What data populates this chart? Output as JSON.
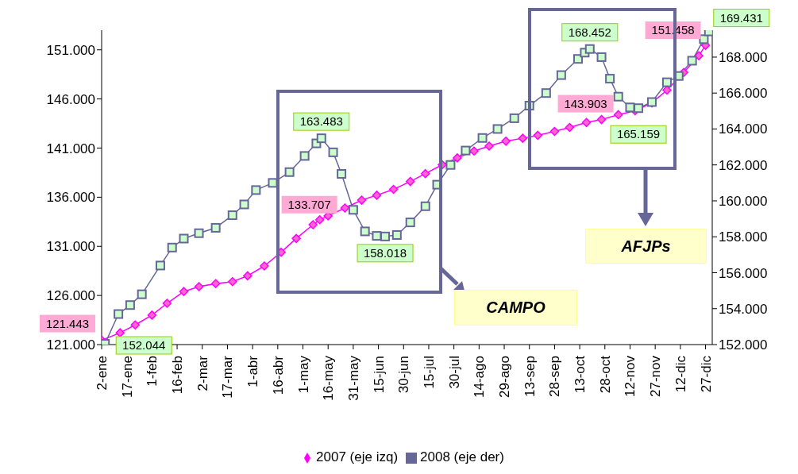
{
  "chart_data": {
    "type": "line",
    "xlim": [
      "--01-02",
      "--12-31"
    ],
    "xticks": [
      {
        "value": "--01-02",
        "label": "2-ene"
      },
      {
        "value": "--01-17",
        "label": "17-ene"
      },
      {
        "value": "--02-01",
        "label": "1-feb"
      },
      {
        "value": "--02-16",
        "label": "16-feb"
      },
      {
        "value": "--03-02",
        "label": "2-mar"
      },
      {
        "value": "--03-17",
        "label": "17-mar"
      },
      {
        "value": "--04-01",
        "label": "1-abr"
      },
      {
        "value": "--04-16",
        "label": "16-abr"
      },
      {
        "value": "--05-01",
        "label": "1-may"
      },
      {
        "value": "--05-16",
        "label": "16-may"
      },
      {
        "value": "--05-31",
        "label": "31-may"
      },
      {
        "value": "--06-15",
        "label": "15-jun"
      },
      {
        "value": "--06-30",
        "label": "30-jun"
      },
      {
        "value": "--07-15",
        "label": "15-jul"
      },
      {
        "value": "--07-30",
        "label": "30-jul"
      },
      {
        "value": "--08-14",
        "label": "14-ago"
      },
      {
        "value": "--08-29",
        "label": "29-ago"
      },
      {
        "value": "--09-13",
        "label": "13-sep"
      },
      {
        "value": "--09-28",
        "label": "28-sep"
      },
      {
        "value": "--10-13",
        "label": "13-oct"
      },
      {
        "value": "--10-28",
        "label": "28-oct"
      },
      {
        "value": "--11-12",
        "label": "12-nov"
      },
      {
        "value": "--11-27",
        "label": "27-nov"
      },
      {
        "value": "--12-12",
        "label": "12-dic"
      },
      {
        "value": "--12-27",
        "label": "27-dic"
      }
    ],
    "ylim": [
      121000,
      153000
    ],
    "yticks": [
      {
        "value": 121000,
        "label": "121.000"
      },
      {
        "value": 126000,
        "label": "126.000"
      },
      {
        "value": 131000,
        "label": "131.000"
      },
      {
        "value": 136000,
        "label": "136.000"
      },
      {
        "value": 141000,
        "label": "141.000"
      },
      {
        "value": 146000,
        "label": "146.000"
      },
      {
        "value": 151000,
        "label": "151.000"
      }
    ],
    "y2lim": [
      152000,
      169500
    ],
    "y2ticks": [
      {
        "value": 152000,
        "label": "152.000"
      },
      {
        "value": 154000,
        "label": "154.000"
      },
      {
        "value": 156000,
        "label": "156.000"
      },
      {
        "value": 158000,
        "label": "158.000"
      },
      {
        "value": 160000,
        "label": "160.000"
      },
      {
        "value": 162000,
        "label": "162.000"
      },
      {
        "value": 164000,
        "label": "164.000"
      },
      {
        "value": 166000,
        "label": "166.000"
      },
      {
        "value": 168000,
        "label": "168.000"
      }
    ],
    "legend": "bottom",
    "annotations": [
      "CAMPO",
      "AFJPs"
    ],
    "series": [
      {
        "name": "2007 (eje izq)",
        "color": "#ff00ff",
        "marker": "diamond",
        "axis": "y",
        "x": [
          "--01-02",
          "--01-13",
          "--01-22",
          "--02-01",
          "--02-10",
          "--02-20",
          "--02-29",
          "--03-10",
          "--03-20",
          "--03-29",
          "--04-08",
          "--04-18",
          "--04-27",
          "--05-07",
          "--05-11",
          "--05-16",
          "--05-26",
          "--06-05",
          "--06-14",
          "--06-24",
          "--07-04",
          "--07-13",
          "--07-23",
          "--08-01",
          "--08-11",
          "--08-20",
          "--08-30",
          "--09-09",
          "--09-18",
          "--09-28",
          "--10-07",
          "--10-17",
          "--10-26",
          "--11-05",
          "--11-15",
          "--11-25",
          "--12-04",
          "--12-14",
          "--12-23",
          "--12-27"
        ],
        "values": [
          121443,
          122200,
          123000,
          124000,
          125200,
          126400,
          126900,
          127200,
          127400,
          128000,
          129000,
          130400,
          131800,
          133200,
          133707,
          134100,
          134900,
          135700,
          136200,
          136800,
          137600,
          138400,
          139300,
          140000,
          140700,
          141200,
          141700,
          142000,
          142300,
          142700,
          143100,
          143600,
          143903,
          144400,
          144800,
          145600,
          146900,
          148700,
          150400,
          151458
        ],
        "value_labels": [
          "121.443",
          null,
          null,
          null,
          null,
          null,
          null,
          null,
          null,
          null,
          null,
          null,
          null,
          null,
          "133.707",
          null,
          null,
          null,
          null,
          null,
          null,
          null,
          null,
          null,
          null,
          null,
          null,
          null,
          null,
          null,
          null,
          null,
          "143.903",
          null,
          null,
          null,
          null,
          null,
          null,
          "151.458"
        ]
      },
      {
        "name": "2008  (eje der)",
        "color": "#666699",
        "marker": "square",
        "axis": "y2",
        "x": [
          "--01-04",
          "--01-12",
          "--01-19",
          "--01-26",
          "--02-06",
          "--02-13",
          "--02-20",
          "--02-29",
          "--03-10",
          "--03-20",
          "--03-27",
          "--04-03",
          "--04-13",
          "--04-23",
          "--05-02",
          "--05-09",
          "--05-12",
          "--05-19",
          "--05-24",
          "--05-31",
          "--06-07",
          "--06-14",
          "--06-19",
          "--06-26",
          "--07-04",
          "--07-13",
          "--07-20",
          "--07-28",
          "--08-06",
          "--08-16",
          "--08-25",
          "--09-04",
          "--09-13",
          "--09-23",
          "--10-02",
          "--10-12",
          "--10-16",
          "--10-19",
          "--10-26",
          "--10-31",
          "--11-05",
          "--11-12",
          "--11-17",
          "--11-25",
          "--12-04",
          "--12-11",
          "--12-19",
          "--12-26",
          "--12-29"
        ],
        "values": [
          152044,
          153700,
          154200,
          154800,
          156400,
          157400,
          157900,
          158200,
          158500,
          159200,
          159800,
          160600,
          161000,
          161600,
          162500,
          163200,
          163483,
          162700,
          161500,
          159500,
          158300,
          158050,
          158018,
          158100,
          158800,
          159700,
          160900,
          162000,
          162800,
          163500,
          164000,
          164600,
          165300,
          166000,
          167000,
          167900,
          168250,
          168452,
          168000,
          166800,
          165800,
          165200,
          165159,
          165500,
          166600,
          166950,
          167800,
          169000,
          169431
        ],
        "value_labels": [
          "152.044",
          null,
          null,
          null,
          null,
          null,
          null,
          null,
          null,
          null,
          null,
          null,
          null,
          null,
          null,
          null,
          "163.483",
          null,
          null,
          null,
          null,
          null,
          "158.018",
          null,
          null,
          null,
          null,
          null,
          null,
          null,
          null,
          null,
          null,
          null,
          null,
          null,
          null,
          "168.452",
          null,
          null,
          null,
          null,
          "165.159",
          null,
          null,
          null,
          null,
          null,
          "169.431"
        ]
      }
    ]
  }
}
